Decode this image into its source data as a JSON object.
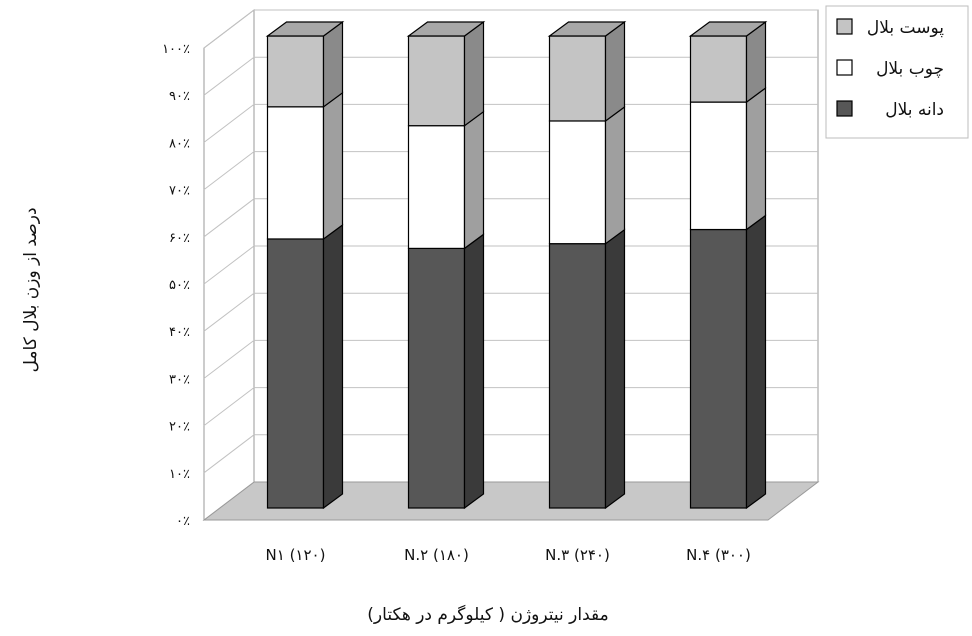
{
  "chart_data": {
    "type": "bar",
    "stacked": true,
    "three_d": true,
    "categories": [
      "N۱ (۱۲۰)",
      "N.۲ (۱۸۰)",
      "N.۳ (۲۴۰)",
      "N.۴ (۳۰۰)"
    ],
    "series": [
      {
        "name": "دانه بلال",
        "values": [
          57,
          55,
          56,
          59
        ],
        "color": "#575757"
      },
      {
        "name": "چوب بلال",
        "values": [
          28,
          26,
          26,
          27
        ],
        "color": "#ffffff"
      },
      {
        "name": "پوست بلال",
        "values": [
          15,
          19,
          18,
          14
        ],
        "color": "#c4c4c4"
      }
    ],
    "yticks": [
      "۰٪",
      "۱۰٪",
      "۲۰٪",
      "۳۰٪",
      "۴۰٪",
      "۵۰٪",
      "۶۰٪",
      "۷۰٪",
      "۸۰٪",
      "۹۰٪",
      "۱۰۰٪"
    ],
    "ylim": [
      0,
      100
    ],
    "ylabel": "درصد از وزن بلال کامل",
    "xlabel": "مقدار نیتروژن ( کیلوگرم در هکتار)",
    "grid": true,
    "legend_position": "top-right",
    "legend_order": [
      "پوست بلال",
      "چوب بلال",
      "دانه بلال"
    ]
  }
}
